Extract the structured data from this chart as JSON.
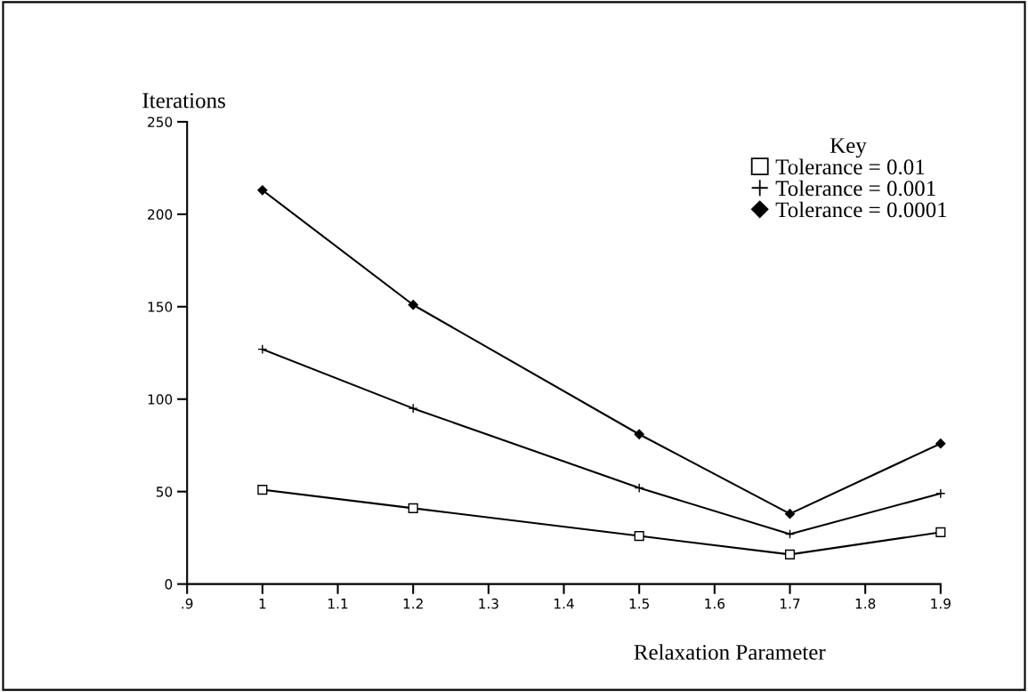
{
  "chart_data": {
    "type": "line",
    "xlabel": "Relaxation Parameter",
    "ylabel": "Iterations",
    "legend_title": "Key",
    "legend": "top right",
    "grid": false,
    "x": [
      1.0,
      1.2,
      1.5,
      1.7,
      1.9
    ],
    "series": [
      {
        "name": "Tolerance = 0.01",
        "color": "#000000",
        "marker": "square",
        "values": [
          51,
          41,
          26,
          16,
          28
        ]
      },
      {
        "name": "Tolerance = 0.001",
        "color": "#000000",
        "marker": "cross",
        "values": [
          127,
          95,
          52,
          27,
          49
        ]
      },
      {
        "name": "Tolerance = 0.0001",
        "color": "#000000",
        "marker": "diamond",
        "values": [
          213,
          151,
          81,
          38,
          76
        ]
      }
    ],
    "xlim": [
      0.9,
      1.9
    ],
    "xticks": [
      {
        "value": 0.9,
        "label": ".9"
      },
      1,
      1.1,
      1.2,
      1.3,
      1.4,
      1.5,
      1.6,
      1.7,
      1.8,
      1.9
    ],
    "ylim": [
      0,
      250
    ],
    "yticks": [
      0,
      50,
      100,
      150,
      200,
      250
    ]
  }
}
